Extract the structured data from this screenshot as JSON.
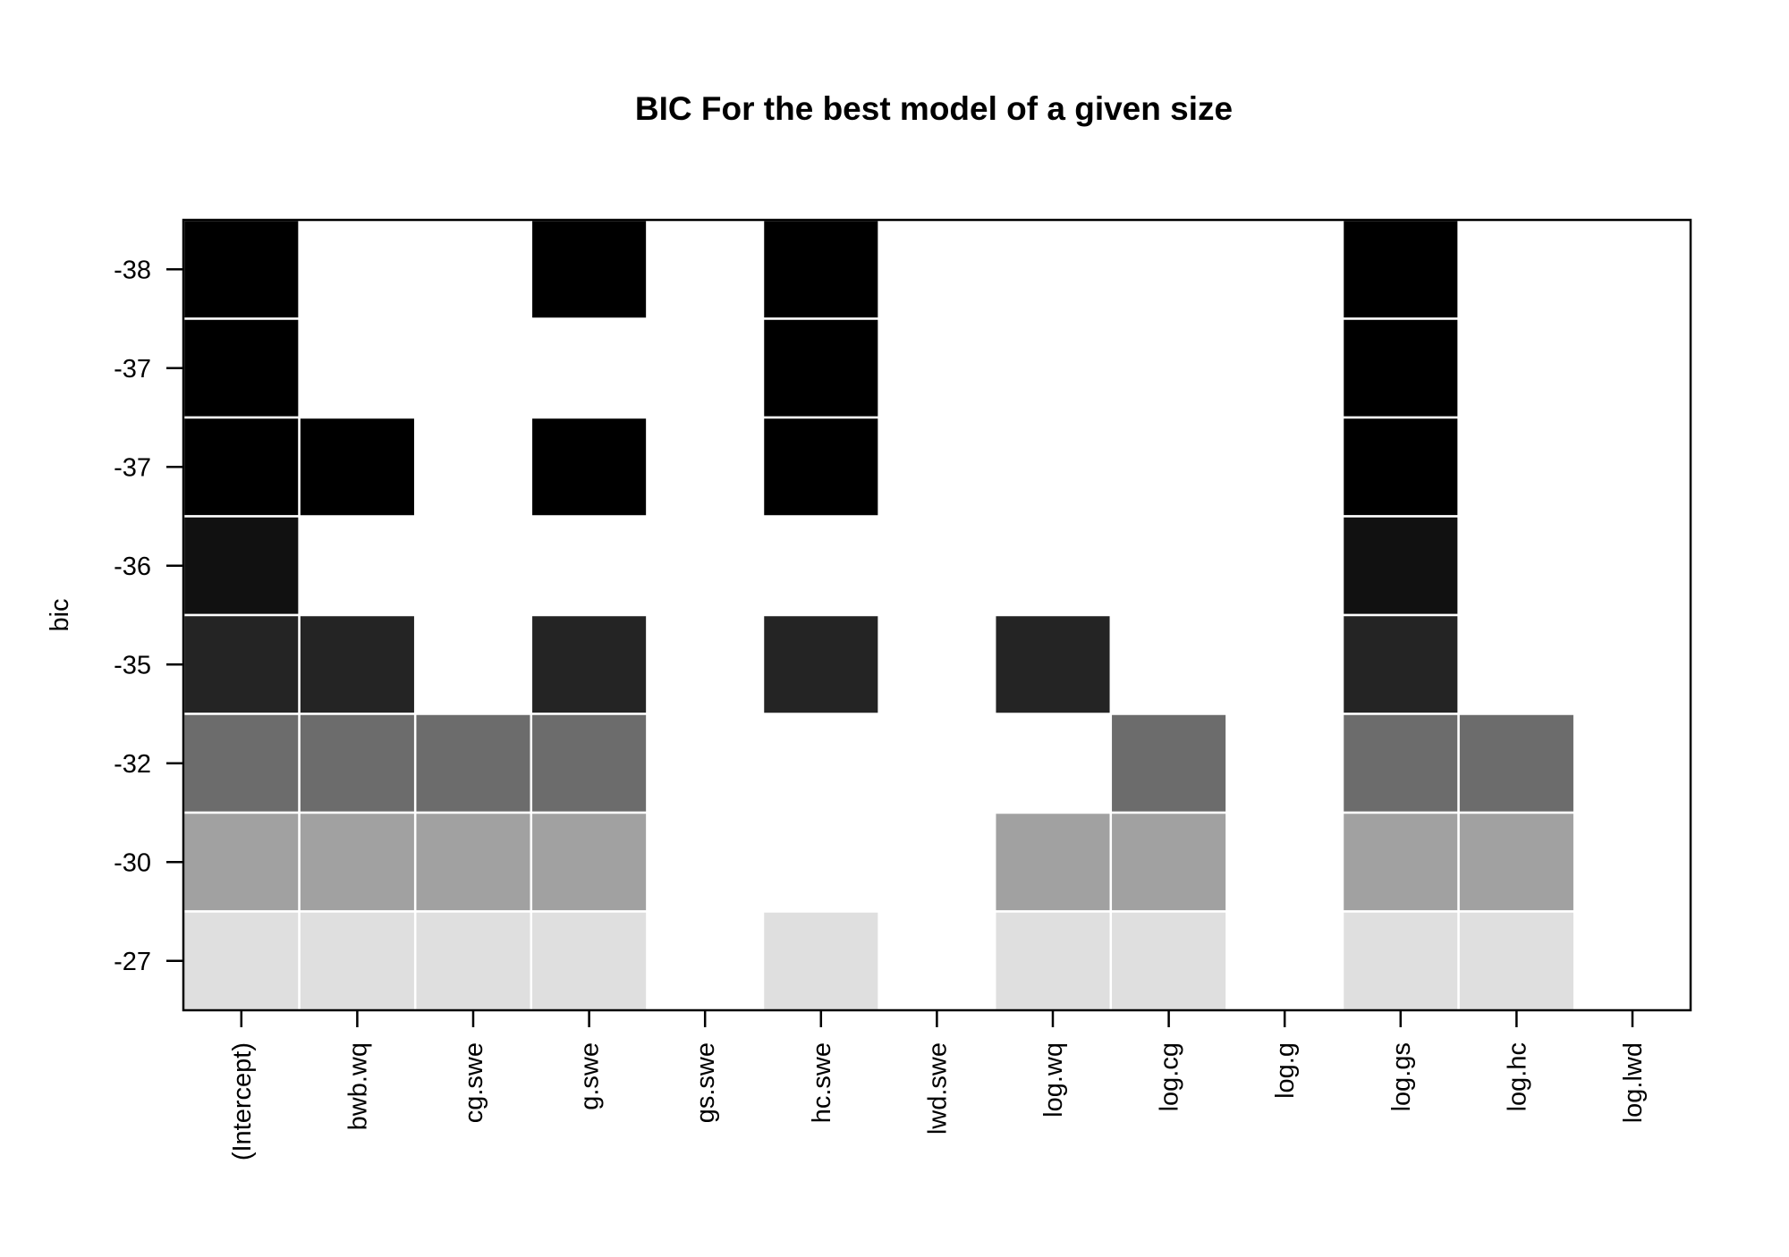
{
  "chart_data": {
    "type": "heatmap",
    "title": "BIC For the best model of a given size",
    "xlabel": "",
    "ylabel": "bic",
    "variables": [
      "(Intercept)",
      "bwb.wq",
      "cg.swe",
      "g.swe",
      "gs.swe",
      "hc.swe",
      "lwd.swe",
      "log.wq",
      "log.cg",
      "log.g",
      "log.gs",
      "log.hc",
      "log.lwd"
    ],
    "rows": [
      {
        "bic_label": "-38",
        "color": "#000000",
        "included": [
          1,
          0,
          0,
          1,
          0,
          1,
          0,
          0,
          0,
          0,
          1,
          0,
          0
        ]
      },
      {
        "bic_label": "-37",
        "color": "#000000",
        "included": [
          1,
          0,
          0,
          0,
          0,
          1,
          0,
          0,
          0,
          0,
          1,
          0,
          0
        ]
      },
      {
        "bic_label": "-37",
        "color": "#000000",
        "included": [
          1,
          1,
          0,
          1,
          0,
          1,
          0,
          0,
          0,
          0,
          1,
          0,
          0
        ]
      },
      {
        "bic_label": "-36",
        "color": "#111111",
        "included": [
          1,
          0,
          0,
          0,
          0,
          0,
          0,
          0,
          0,
          0,
          1,
          0,
          0
        ]
      },
      {
        "bic_label": "-35",
        "color": "#242424",
        "included": [
          1,
          1,
          0,
          1,
          0,
          1,
          0,
          1,
          0,
          0,
          1,
          0,
          0
        ]
      },
      {
        "bic_label": "-32",
        "color": "#6c6c6c",
        "included": [
          1,
          1,
          1,
          1,
          0,
          0,
          0,
          0,
          1,
          0,
          1,
          1,
          0
        ]
      },
      {
        "bic_label": "-30",
        "color": "#a1a1a1",
        "included": [
          1,
          1,
          1,
          1,
          0,
          0,
          0,
          1,
          1,
          0,
          1,
          1,
          0
        ]
      },
      {
        "bic_label": "-27",
        "color": "#dfdfdf",
        "included": [
          1,
          1,
          1,
          1,
          0,
          1,
          0,
          1,
          1,
          0,
          1,
          1,
          0
        ]
      }
    ],
    "grid": false,
    "legend": "none"
  }
}
